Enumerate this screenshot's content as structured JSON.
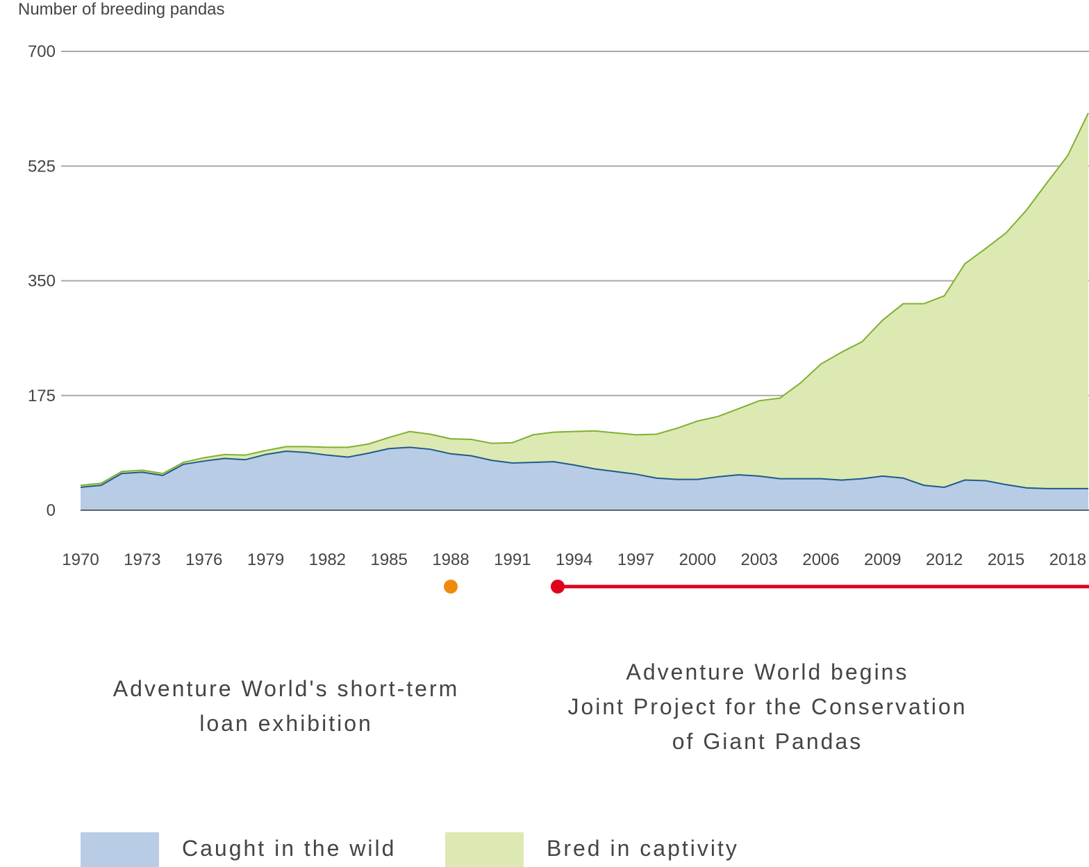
{
  "chart_data": {
    "type": "area",
    "stacked": true,
    "ylabel": "Number of breeding pandas",
    "ylim": [
      0,
      700
    ],
    "yticks": [
      0,
      175,
      350,
      525,
      700
    ],
    "xlim": [
      1970,
      2019
    ],
    "xticks": [
      1970,
      1973,
      1976,
      1979,
      1982,
      1985,
      1988,
      1991,
      1994,
      1997,
      2000,
      2003,
      2006,
      2009,
      2012,
      2015,
      2018
    ],
    "grid": true,
    "x": [
      1970,
      1971,
      1972,
      1973,
      1974,
      1975,
      1976,
      1977,
      1978,
      1979,
      1980,
      1981,
      1982,
      1983,
      1984,
      1985,
      1986,
      1987,
      1988,
      1989,
      1990,
      1991,
      1992,
      1993,
      1994,
      1995,
      1996,
      1997,
      1998,
      1999,
      2000,
      2001,
      2002,
      2003,
      2004,
      2005,
      2006,
      2007,
      2008,
      2009,
      2010,
      2011,
      2012,
      2013,
      2014,
      2015,
      2016,
      2017,
      2018,
      2019
    ],
    "series": [
      {
        "name": "Caught in the wild",
        "color": "#b9cce5",
        "line_color": "#1f5a8a",
        "values": [
          35,
          38,
          56,
          58,
          53,
          70,
          75,
          79,
          77,
          85,
          90,
          88,
          84,
          81,
          87,
          94,
          96,
          93,
          86,
          83,
          76,
          72,
          73,
          74,
          69,
          63,
          59,
          55,
          49,
          47,
          47,
          51,
          54,
          52,
          48,
          48,
          48,
          46,
          48,
          52,
          49,
          38,
          35,
          46,
          45,
          39,
          34,
          33,
          33,
          33
        ]
      },
      {
        "name": "Bred in captivity",
        "color": "#dde9b3",
        "line_color": "#7fb030",
        "values": [
          3,
          3,
          3,
          3,
          3,
          3,
          5,
          6,
          7,
          6,
          7,
          9,
          12,
          15,
          14,
          17,
          24,
          23,
          23,
          25,
          26,
          31,
          42,
          45,
          51,
          58,
          59,
          60,
          67,
          78,
          89,
          92,
          101,
          115,
          123,
          146,
          175,
          195,
          209,
          238,
          266,
          277,
          292,
          330,
          354,
          384,
          424,
          467,
          508,
          573
        ]
      }
    ],
    "annotations": [
      {
        "kind": "point",
        "x": 1988.0,
        "color": "#f08a0f"
      },
      {
        "kind": "range",
        "x_start": 1993.2,
        "x_end": 2019,
        "color": "#e0001b"
      }
    ]
  },
  "annotations_text": {
    "loan": [
      "Adventure World's short-term",
      "loan exhibition"
    ],
    "joint": [
      "Adventure World begins",
      "Joint Project for the Conservation",
      "of Giant Pandas"
    ]
  },
  "legend": [
    {
      "label": "Caught in the wild",
      "color": "#b9cce5"
    },
    {
      "label": "Bred in captivity",
      "color": "#dde9b3"
    }
  ]
}
